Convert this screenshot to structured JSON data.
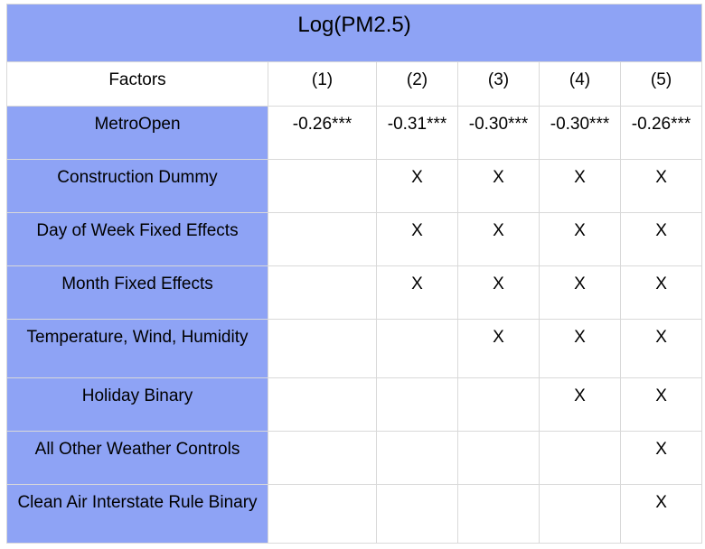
{
  "table": {
    "title": "Log(PM2.5)",
    "header": {
      "factors_label": "Factors",
      "columns": [
        "(1)",
        "(2)",
        "(3)",
        "(4)",
        "(5)"
      ]
    },
    "rows": [
      {
        "label": "MetroOpen",
        "cells": [
          "-0.26***",
          "-0.31***",
          "-0.30***",
          "-0.30***",
          "-0.26***"
        ]
      },
      {
        "label": "Construction Dummy",
        "cells": [
          "",
          "X",
          "X",
          "X",
          "X"
        ]
      },
      {
        "label": "Day of Week Fixed Effects",
        "cells": [
          "",
          "X",
          "X",
          "X",
          "X"
        ]
      },
      {
        "label": "Month Fixed Effects",
        "cells": [
          "",
          "X",
          "X",
          "X",
          "X"
        ]
      },
      {
        "label": "Temperature, Wind, Humidity",
        "cells": [
          "",
          "",
          "X",
          "X",
          "X"
        ]
      },
      {
        "label": "Holiday Binary",
        "cells": [
          "",
          "",
          "",
          "X",
          "X"
        ]
      },
      {
        "label": "All Other Weather Controls",
        "cells": [
          "",
          "",
          "",
          "",
          "X"
        ]
      },
      {
        "label": "Clean Air Interstate Rule Binary",
        "cells": [
          "",
          "",
          "",
          "",
          "X"
        ]
      }
    ]
  },
  "colors": {
    "header_blue": "#8ea3f5",
    "grid_line": "#d9d9d9",
    "cell_white": "#ffffff"
  }
}
